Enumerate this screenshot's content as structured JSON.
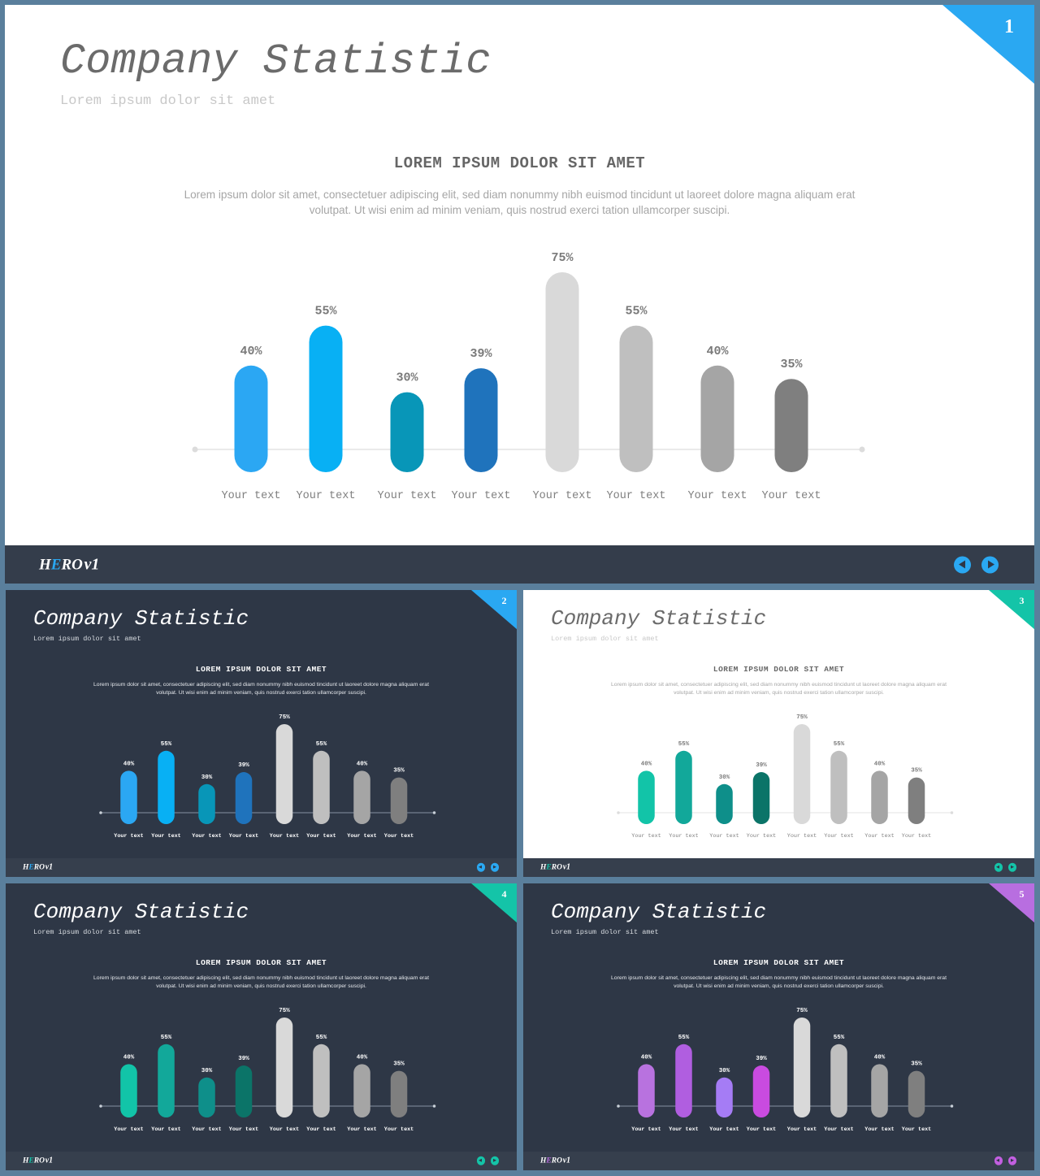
{
  "brand": {
    "prefix": "H",
    "accent_letter": "E",
    "suffix": "RO",
    "version": "v1"
  },
  "slides": [
    {
      "number": "1",
      "theme": "light",
      "accent": "#2aa8f2",
      "title": "Company Statistic",
      "title_word1": "Company",
      "title_word2": "Statistic",
      "subtitle": "Lorem ipsum dolor sit amet",
      "heading": "LOREM IPSUM DOLOR SIT AMET",
      "description_line1": "Lorem ipsum dolor sit amet, consectetuer adipiscing elit, sed diam nonummy  nibh euismod tincidunt ut laoreet dolore magna aliquam erat",
      "description_line2": "volutpat. Ut wisi enim ad minim veniam, quis nostrud exerci tation ullamcorper suscipi.",
      "nav_icons": [
        "arrow-left-icon",
        "arrow-right-icon"
      ],
      "nav_color": "#2aa8f2",
      "chart_data": {
        "type": "bar",
        "categories": [
          "Your text",
          "Your text",
          "Your text",
          "Your text",
          "Your text",
          "Your text",
          "Your text",
          "Your text"
        ],
        "values": [
          40,
          55,
          30,
          39,
          75,
          55,
          40,
          35
        ],
        "value_labels": [
          "40%",
          "55%",
          "30%",
          "39%",
          "75%",
          "55%",
          "40%",
          "35%"
        ],
        "colors": [
          "#2ba7f3",
          "#08b0f4",
          "#0896b8",
          "#1f73bc",
          "#d9d9d9",
          "#bfbfbf",
          "#a5a5a5",
          "#7f7f7f"
        ],
        "ylim": [
          0,
          100
        ]
      }
    },
    {
      "number": "2",
      "theme": "dark",
      "accent": "#2aa8f2",
      "title": "Company Statistic",
      "title_word1": "Company",
      "title_word2": "Statistic",
      "subtitle": "Lorem ipsum dolor sit amet",
      "heading": "LOREM IPSUM DOLOR SIT AMET",
      "description_line1": "Lorem ipsum dolor sit amet, consectetuer adipiscing elit, sed diam nonummy  nibh euismod tincidunt ut laoreet dolore magna aliquam erat",
      "description_line2": "volutpat. Ut wisi enim ad minim veniam, quis nostrud exerci tation ullamcorper suscipi.",
      "nav_icons": [
        "arrow-left-icon",
        "arrow-right-icon"
      ],
      "nav_color": "#2aa8f2",
      "chart_data": {
        "type": "bar",
        "categories": [
          "Your text",
          "Your text",
          "Your text",
          "Your text",
          "Your text",
          "Your text",
          "Your text",
          "Your text"
        ],
        "values": [
          40,
          55,
          30,
          39,
          75,
          55,
          40,
          35
        ],
        "value_labels": [
          "40%",
          "55%",
          "30%",
          "39%",
          "75%",
          "55%",
          "40%",
          "35%"
        ],
        "colors": [
          "#2ba7f3",
          "#08b0f4",
          "#0896b8",
          "#1f73bc",
          "#d9d9d9",
          "#bfbfbf",
          "#a5a5a5",
          "#7f7f7f"
        ],
        "ylim": [
          0,
          100
        ]
      }
    },
    {
      "number": "3",
      "theme": "light",
      "accent": "#14c4a8",
      "title": "Company Statistic",
      "title_word1": "Company",
      "title_word2": "Statistic",
      "subtitle": "Lorem ipsum dolor sit amet",
      "heading": "LOREM IPSUM DOLOR SIT AMET",
      "description_line1": "Lorem ipsum dolor sit amet, consectetuer adipiscing elit, sed diam nonummy  nibh euismod tincidunt ut laoreet dolore magna aliquam erat",
      "description_line2": "volutpat. Ut wisi enim ad minim veniam, quis nostrud exerci tation ullamcorper suscipi.",
      "nav_icons": [
        "arrow-left-icon",
        "arrow-right-icon"
      ],
      "nav_color": "#14c4a8",
      "chart_data": {
        "type": "bar",
        "categories": [
          "Your text",
          "Your text",
          "Your text",
          "Your text",
          "Your text",
          "Your text",
          "Your text",
          "Your text"
        ],
        "values": [
          40,
          55,
          30,
          39,
          75,
          55,
          40,
          35
        ],
        "value_labels": [
          "40%",
          "55%",
          "30%",
          "39%",
          "75%",
          "55%",
          "40%",
          "35%"
        ],
        "colors": [
          "#12c4a8",
          "#12a89a",
          "#0e8f8a",
          "#0b7468",
          "#d9d9d9",
          "#bfbfbf",
          "#a5a5a5",
          "#7f7f7f"
        ],
        "ylim": [
          0,
          100
        ]
      }
    },
    {
      "number": "4",
      "theme": "dark",
      "accent": "#14c4a8",
      "title": "Company Statistic",
      "title_word1": "Company",
      "title_word2": "Statistic",
      "subtitle": "Lorem ipsum dolor sit amet",
      "heading": "LOREM IPSUM DOLOR SIT AMET",
      "description_line1": "Lorem ipsum dolor sit amet, consectetuer adipiscing elit, sed diam nonummy  nibh euismod tincidunt ut laoreet dolore magna aliquam erat",
      "description_line2": "volutpat. Ut wisi enim ad minim veniam, quis nostrud exerci tation ullamcorper suscipi.",
      "nav_icons": [
        "arrow-left-icon",
        "arrow-right-icon"
      ],
      "nav_color": "#14c4a8",
      "chart_data": {
        "type": "bar",
        "categories": [
          "Your text",
          "Your text",
          "Your text",
          "Your text",
          "Your text",
          "Your text",
          "Your text",
          "Your text"
        ],
        "values": [
          40,
          55,
          30,
          39,
          75,
          55,
          40,
          35
        ],
        "value_labels": [
          "40%",
          "55%",
          "30%",
          "39%",
          "75%",
          "55%",
          "40%",
          "35%"
        ],
        "colors": [
          "#12c4a8",
          "#12a89a",
          "#0e8f8a",
          "#0b7468",
          "#d9d9d9",
          "#bfbfbf",
          "#a5a5a5",
          "#7f7f7f"
        ],
        "ylim": [
          0,
          100
        ]
      }
    },
    {
      "number": "5",
      "theme": "dark",
      "accent": "#b86ee0",
      "title": "Company Statistic",
      "title_word1": "Company",
      "title_word2": "Statistic",
      "subtitle": "Lorem ipsum dolor sit amet",
      "heading": "LOREM IPSUM DOLOR SIT AMET",
      "description_line1": "Lorem ipsum dolor sit amet, consectetuer adipiscing elit, sed diam nonummy  nibh euismod tincidunt ut laoreet dolore magna aliquam erat",
      "description_line2": "volutpat. Ut wisi enim ad minim veniam, quis nostrud exerci tation ullamcorper suscipi.",
      "nav_icons": [
        "arrow-left-icon",
        "arrow-right-icon"
      ],
      "nav_color": "#c25fe0",
      "chart_data": {
        "type": "bar",
        "categories": [
          "Your text",
          "Your text",
          "Your text",
          "Your text",
          "Your text",
          "Your text",
          "Your text",
          "Your text"
        ],
        "values": [
          40,
          55,
          30,
          39,
          75,
          55,
          40,
          35
        ],
        "value_labels": [
          "40%",
          "55%",
          "30%",
          "39%",
          "75%",
          "55%",
          "40%",
          "35%"
        ],
        "colors": [
          "#b872df",
          "#b05ee0",
          "#a57cf5",
          "#c94be0",
          "#d9d9d9",
          "#bfbfbf",
          "#a5a5a5",
          "#7f7f7f"
        ],
        "ylim": [
          0,
          100
        ]
      }
    }
  ]
}
